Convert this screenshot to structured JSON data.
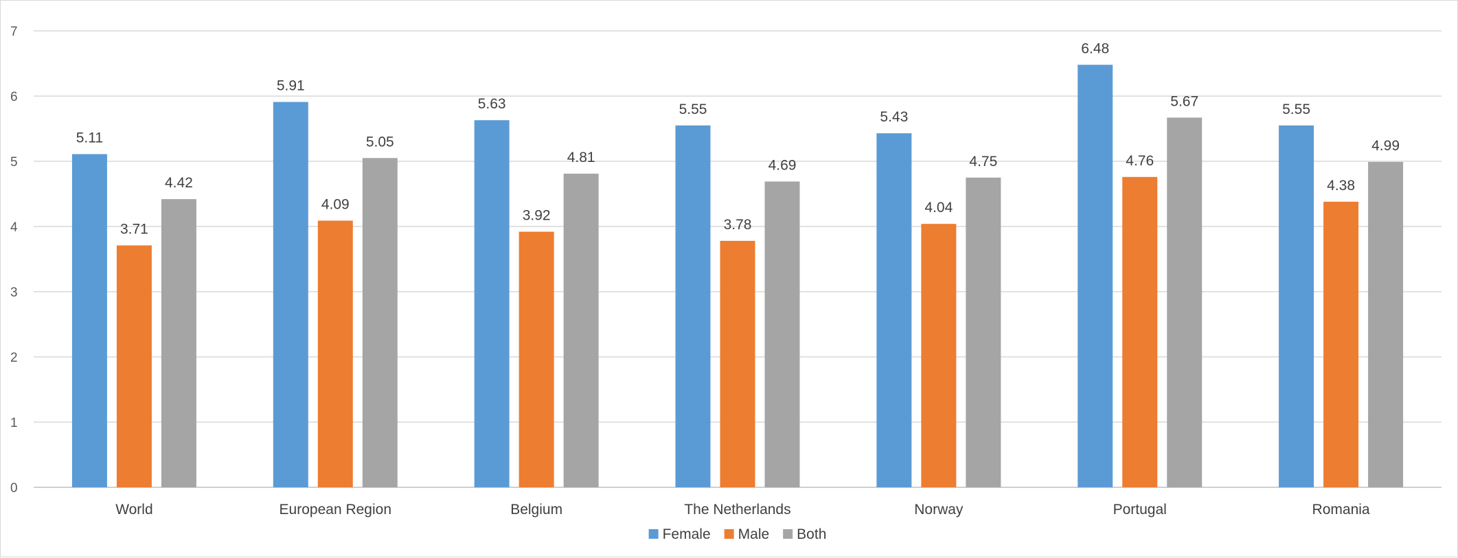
{
  "chart_data": {
    "type": "bar",
    "title": "",
    "xlabel": "",
    "ylabel": "",
    "ylim": [
      0,
      7
    ],
    "y_ticks": [
      0,
      1,
      2,
      3,
      4,
      5,
      6,
      7
    ],
    "grid": "horizontal",
    "legend_position": "bottom",
    "categories": [
      "World",
      "European Region",
      "Belgium",
      "The Netherlands",
      "Norway",
      "Portugal",
      "Romania"
    ],
    "series": [
      {
        "name": "Female",
        "color": "#5B9BD5",
        "values": [
          5.11,
          5.91,
          5.63,
          5.55,
          5.43,
          6.48,
          5.55
        ]
      },
      {
        "name": "Male",
        "color": "#ED7D31",
        "values": [
          3.71,
          4.09,
          3.92,
          3.78,
          4.04,
          4.76,
          4.38
        ]
      },
      {
        "name": "Both",
        "color": "#A5A5A5",
        "values": [
          4.42,
          5.05,
          4.81,
          4.69,
          4.75,
          5.67,
          4.99
        ]
      }
    ],
    "data_labels": [
      [
        "5.11",
        "5.91",
        "5.63",
        "5.55",
        "5.43",
        "6.48",
        "5.55"
      ],
      [
        "3.71",
        "4.09",
        "3.92",
        "3.78",
        "4.04",
        "4.76",
        "4.38"
      ],
      [
        "4.42",
        "5.05",
        "4.81",
        "4.69",
        "4.75",
        "5.67",
        "4.99"
      ]
    ]
  }
}
